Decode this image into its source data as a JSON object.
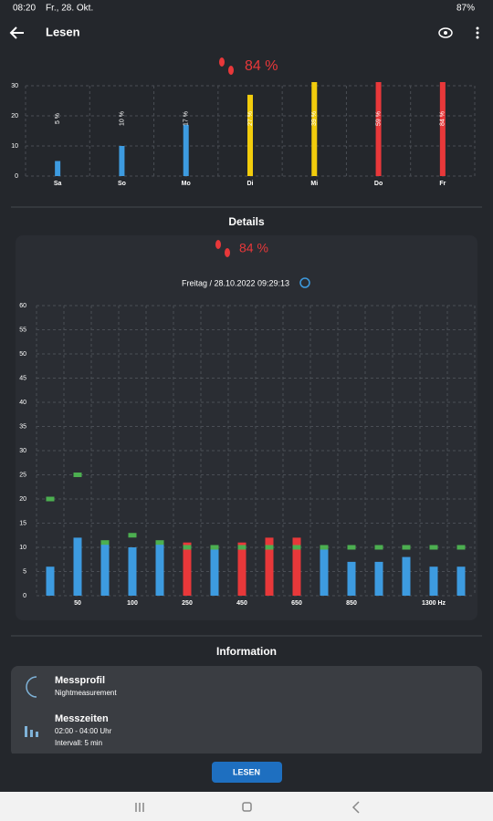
{
  "status_bar": {
    "time": "08:20",
    "date": "Fr., 28. Okt.",
    "battery": "87%"
  },
  "app_bar": {
    "title": "Lesen"
  },
  "summary": {
    "value_label": "84 %"
  },
  "weekly_chart": {
    "type": "bar",
    "categories": [
      "Sa",
      "So",
      "Mo",
      "Di",
      "Mi",
      "Do",
      "Fr"
    ],
    "values": [
      5,
      10,
      17,
      27,
      39,
      59,
      84
    ],
    "value_labels": [
      "5 %",
      "10 %",
      "17 %",
      "27 %",
      "39 %",
      "59 %",
      "84 %"
    ],
    "colors": [
      "#3d9be0",
      "#3d9be0",
      "#3d9be0",
      "#f2cc0c",
      "#f2cc0c",
      "#e8383a",
      "#e8383a"
    ],
    "ylim": [
      0,
      30
    ],
    "yticks": [
      0,
      10,
      20,
      30
    ],
    "grid": true
  },
  "details": {
    "title": "Details",
    "value_label": "84 %",
    "timestamp": "Freitag / 28.10.2022 09:29:13",
    "chart": {
      "type": "bar",
      "categories": [
        null,
        "50",
        null,
        "100",
        null,
        "250",
        null,
        "450",
        null,
        "650",
        null,
        "850",
        null,
        null,
        "1300 Hz",
        null
      ],
      "values": [
        6,
        12,
        11,
        10,
        11,
        11,
        10,
        11,
        12,
        12,
        10,
        7,
        7,
        8,
        6,
        6
      ],
      "colors": [
        "#3d9be0",
        "#3d9be0",
        "#3d9be0",
        "#3d9be0",
        "#3d9be0",
        "#e8383a",
        "#3d9be0",
        "#e8383a",
        "#e8383a",
        "#e8383a",
        "#3d9be0",
        "#3d9be0",
        "#3d9be0",
        "#3d9be0",
        "#3d9be0",
        "#3d9be0"
      ],
      "reference": [
        20,
        25,
        11,
        12.5,
        11,
        10,
        10,
        10,
        10,
        10,
        10,
        10,
        10,
        10,
        10,
        10
      ],
      "reference_color": "#4caf50",
      "ylim": [
        0,
        60
      ],
      "yticks": [
        0,
        5,
        10,
        15,
        20,
        25,
        30,
        35,
        40,
        45,
        50,
        55,
        60
      ],
      "grid": true
    }
  },
  "information": {
    "title": "Information",
    "items": [
      {
        "title": "Messprofil",
        "lines": [
          "Nightmeasurement"
        ]
      },
      {
        "title": "Messzeiten",
        "lines": [
          "02:00 - 04:00 Uhr",
          "Intervall: 5 min"
        ]
      }
    ]
  },
  "button": {
    "label": "LESEN"
  }
}
